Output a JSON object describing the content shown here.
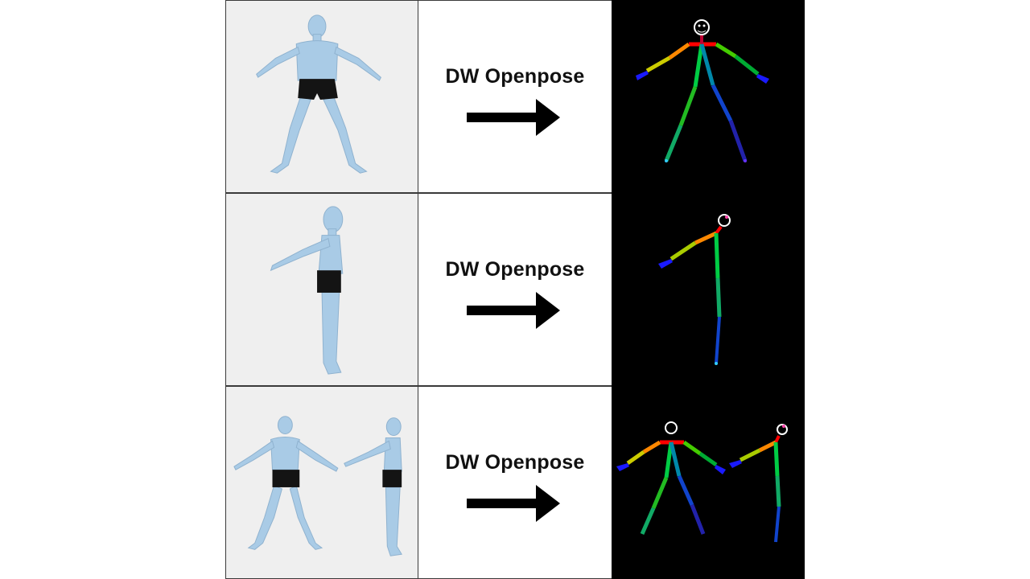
{
  "rows": [
    {
      "view": "front",
      "method_label": "DW Openpose"
    },
    {
      "view": "side",
      "method_label": "DW Openpose"
    },
    {
      "view": "front-and-side",
      "method_label": "DW Openpose"
    }
  ],
  "colors": {
    "skin": "#a9cbe6",
    "shorts": "#141414",
    "photo_bg": "#efefef",
    "pose_bg": "#000000",
    "neck_red": "#ff0000",
    "hand_blue": "#1a1aff"
  },
  "icons": [
    "right-arrow-icon"
  ]
}
